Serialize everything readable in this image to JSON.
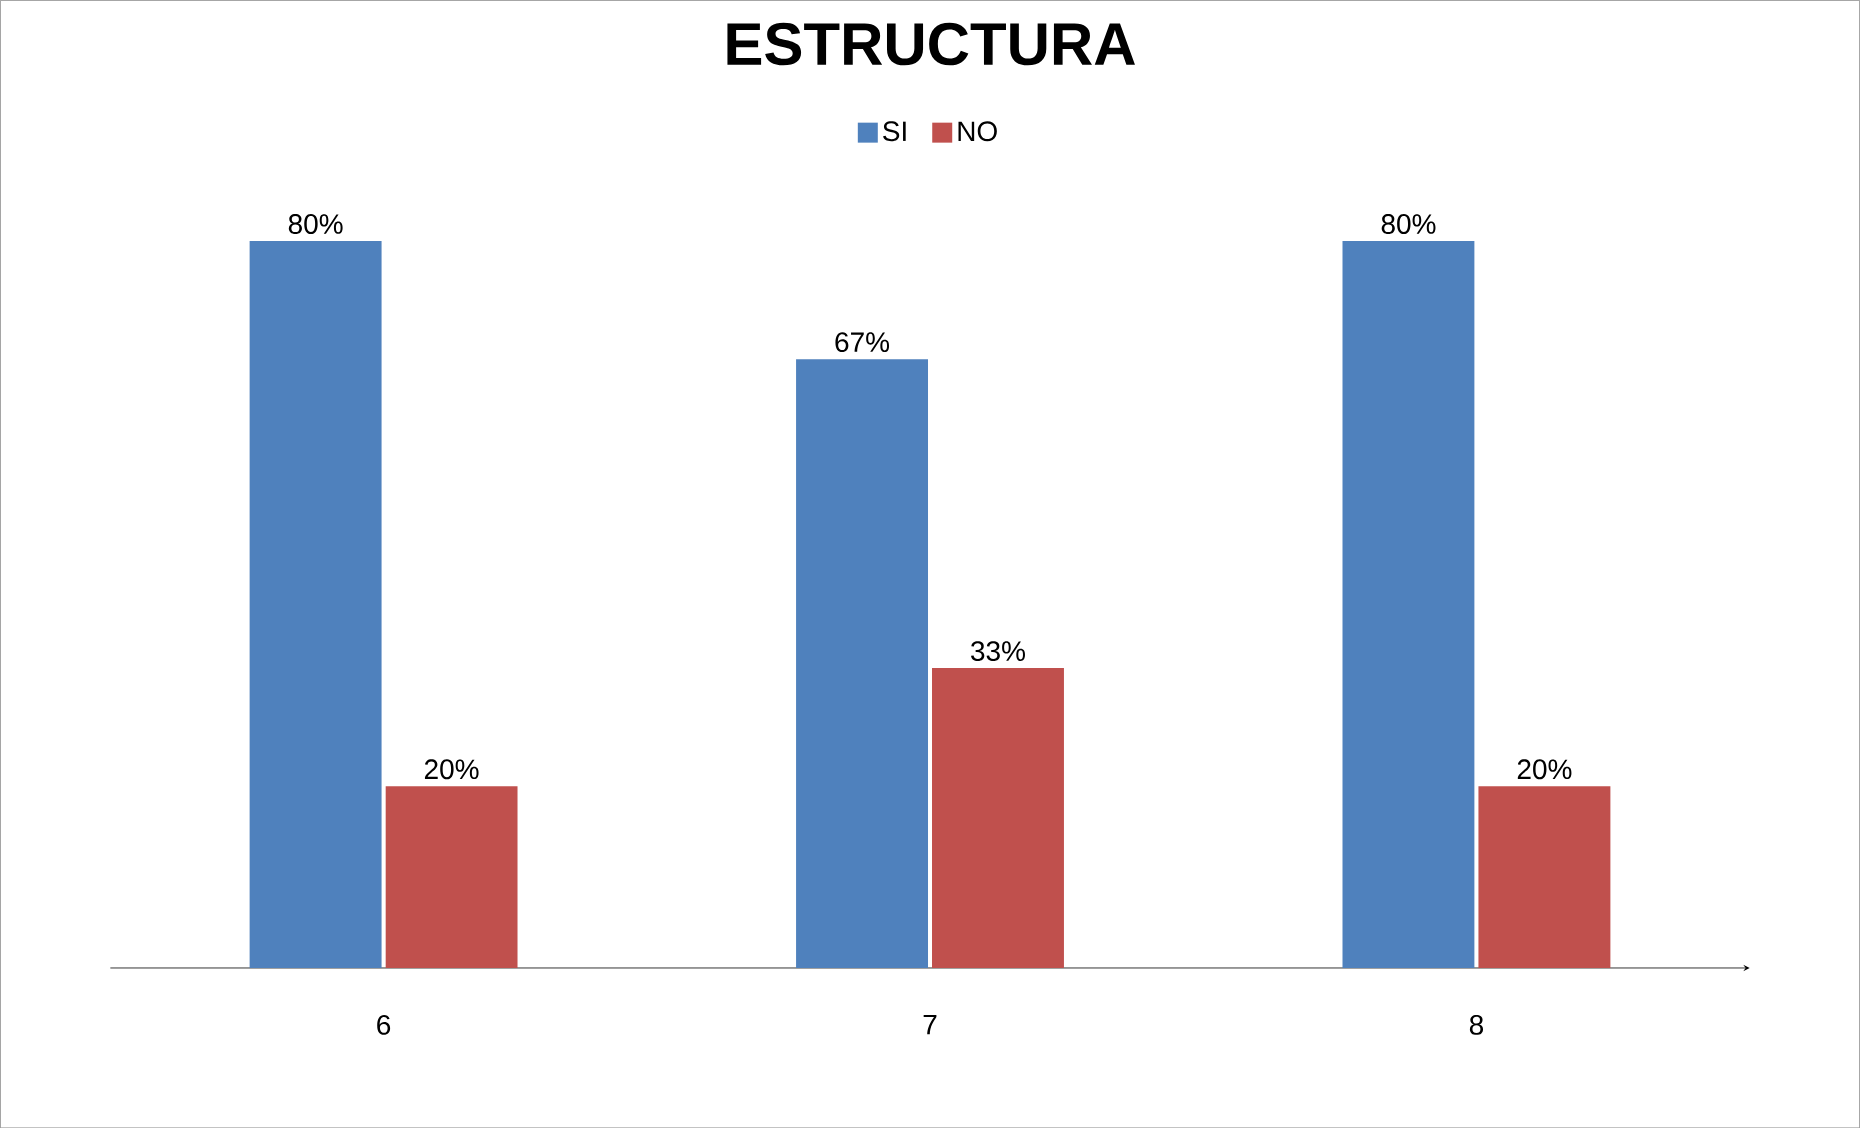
{
  "chart_data": {
    "type": "bar",
    "title": "ESTRUCTURA",
    "categories": [
      "6",
      "7",
      "8"
    ],
    "series": [
      {
        "name": "SI",
        "color": "#4f81bd",
        "values": [
          80,
          67,
          80
        ],
        "value_labels": [
          "80%",
          "67%",
          "80%"
        ]
      },
      {
        "name": "NO",
        "color": "#c0504d",
        "values": [
          20,
          33,
          20
        ],
        "value_labels": [
          "20%",
          "33%",
          "20%"
        ]
      }
    ],
    "legend": "top"
  }
}
